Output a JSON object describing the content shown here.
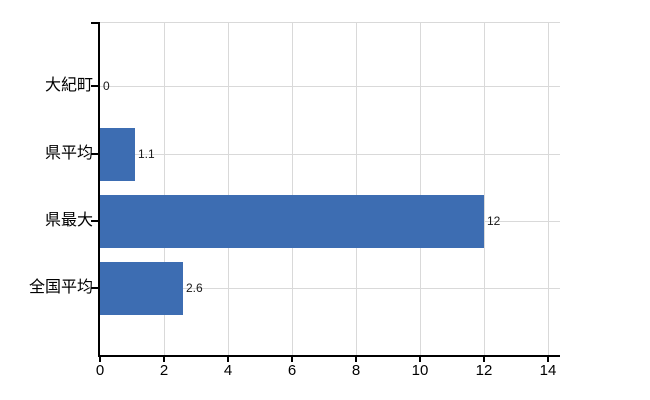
{
  "chart_data": {
    "type": "bar",
    "orientation": "horizontal",
    "title": "",
    "xlabel": "",
    "ylabel": "",
    "categories": [
      "大紀町",
      "県平均",
      "県最大",
      "全国平均"
    ],
    "values": [
      0,
      1.1,
      12,
      2.6
    ],
    "value_labels": [
      "0",
      "1.1",
      "12",
      "2.6"
    ],
    "x_ticks": [
      0,
      2,
      4,
      6,
      8,
      10,
      12,
      14
    ],
    "x_tick_labels": [
      "0",
      "2",
      "4",
      "6",
      "8",
      "10",
      "12",
      "14"
    ],
    "xlim": [
      0,
      14.4
    ],
    "grid": true,
    "legend_position": "none",
    "colors": {
      "bar": "#3d6db2",
      "grid": "#d9d9d9",
      "axis": "#000000",
      "category_text": "#000000",
      "tick_text": "#000000",
      "value_text": "#1a1a1a",
      "background": "#ffffff"
    }
  }
}
